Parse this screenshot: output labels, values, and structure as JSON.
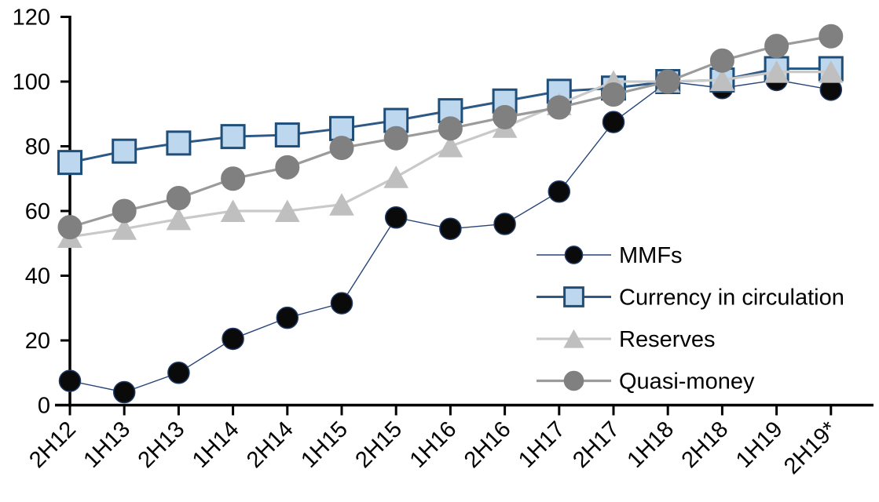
{
  "figure": {
    "background": "#ffffff",
    "axis_color": "#000000",
    "text_color": "#000000"
  },
  "chart_data": {
    "type": "line",
    "categories": [
      "2H12",
      "1H13",
      "2H13",
      "1H14",
      "2H14",
      "1H15",
      "2H15",
      "1H16",
      "2H16",
      "1H17",
      "2H17",
      "1H18",
      "2H18",
      "1H19",
      "2H19*"
    ],
    "series": [
      {
        "name": "MMFs",
        "marker": "circle",
        "marker_color": "#0a0a0a",
        "marker_stroke": "#1f3864",
        "marker_stroke_width": 1.5,
        "line_color": "#264478",
        "line_width": 1.4,
        "marker_size": 27,
        "values": [
          7.5,
          4,
          10,
          20.5,
          27,
          31.5,
          58,
          54.5,
          56,
          66,
          87.5,
          100,
          98,
          100.5,
          97.5
        ]
      },
      {
        "name": "Currency in circulation",
        "marker": "square",
        "marker_color": "#bdd7ee",
        "marker_stroke": "#1f4e79",
        "marker_stroke_width": 3,
        "line_color": "#2d5986",
        "line_width": 3,
        "marker_size": 29,
        "values": [
          75,
          78.5,
          81,
          83,
          83.5,
          85.5,
          88,
          91,
          94,
          97,
          98,
          100,
          100.5,
          104,
          104
        ]
      },
      {
        "name": "Reserves",
        "marker": "triangle",
        "marker_color": "#bfbfbf",
        "marker_stroke": "#bfbfbf",
        "marker_stroke_width": 1,
        "line_color": "#c9c9c9",
        "line_width": 3.2,
        "marker_size": 30,
        "values": [
          52,
          54.5,
          57.5,
          60,
          60,
          62,
          70.5,
          80,
          86,
          93,
          100,
          100,
          100.5,
          103,
          103
        ]
      },
      {
        "name": "Quasi-money",
        "marker": "circle",
        "marker_color": "#808080",
        "marker_stroke": "#808080",
        "marker_stroke_width": 1,
        "line_color": "#9b9b9b",
        "line_width": 3.2,
        "marker_size": 30,
        "values": [
          55,
          60,
          64,
          70,
          73.5,
          79.5,
          82.5,
          85.5,
          89,
          92,
          96,
          100,
          106.5,
          111,
          114
        ]
      }
    ],
    "xlabel": "",
    "ylabel": "",
    "ylim": [
      0,
      120
    ],
    "ytick_step": 20,
    "y_tick_labels": [
      "0",
      "20",
      "40",
      "60",
      "80",
      "100",
      "120"
    ],
    "grid": false,
    "legend_position": "inside-right"
  }
}
